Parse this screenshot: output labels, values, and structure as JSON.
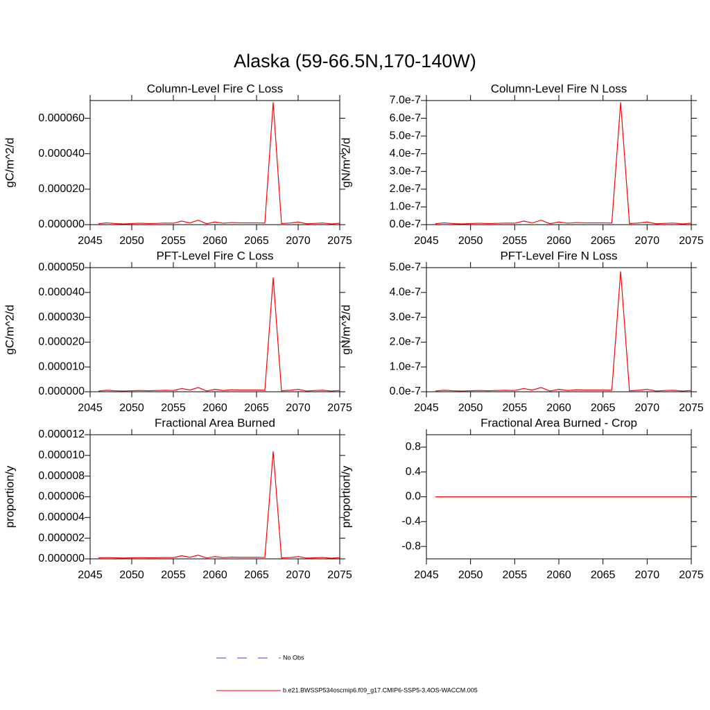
{
  "title": "Alaska (59-66.5N,170-140W)",
  "legend": [
    {
      "label": "No Obs",
      "color": "#3b3bd0",
      "dash": true
    },
    {
      "label": "b.e21.BWSSP534oscmip6.f09_g17.CMIP6-SSP5-3.4OS-WACCM.005",
      "color": "#ff0000",
      "dash": false
    }
  ],
  "chart_data": [
    {
      "type": "line",
      "title": "Column-Level Fire C Loss",
      "ylabel": "gC/m^2/d",
      "color": "#ff0000",
      "x": [
        2046,
        2047,
        2048,
        2049,
        2050,
        2051,
        2052,
        2053,
        2054,
        2055,
        2056,
        2057,
        2058,
        2059,
        2060,
        2061,
        2062,
        2063,
        2064,
        2065,
        2066,
        2067,
        2068,
        2069,
        2070,
        2071,
        2072,
        2073,
        2074,
        2075
      ],
      "values": [
        5e-07,
        1e-06,
        6e-07,
        4e-07,
        6e-07,
        8e-07,
        6e-07,
        7e-07,
        9e-07,
        8e-07,
        2e-06,
        1e-06,
        2.5e-06,
        5e-07,
        1.5e-06,
        8e-07,
        1.2e-06,
        1e-06,
        1e-06,
        1e-06,
        9e-07,
        6.9e-05,
        6e-07,
        9e-07,
        1.5e-06,
        5e-07,
        7e-07,
        9e-07,
        4e-07,
        8e-07
      ],
      "xlim": [
        2045,
        2075
      ],
      "xticks": [
        2045,
        2050,
        2055,
        2060,
        2065,
        2070,
        2075
      ],
      "ylim": [
        0,
        7e-05
      ],
      "yticks": [
        {
          "value": 0,
          "label": "0.000000"
        },
        {
          "value": 2e-05,
          "label": "0.000020"
        },
        {
          "value": 4e-05,
          "label": "0.000040"
        },
        {
          "value": 6e-05,
          "label": "0.000060"
        }
      ]
    },
    {
      "type": "line",
      "title": "Column-Level Fire N Loss",
      "ylabel": "gN/m^2/d",
      "color": "#ff0000",
      "x": [
        2046,
        2047,
        2048,
        2049,
        2050,
        2051,
        2052,
        2053,
        2054,
        2055,
        2056,
        2057,
        2058,
        2059,
        2060,
        2061,
        2062,
        2063,
        2064,
        2065,
        2066,
        2067,
        2068,
        2069,
        2070,
        2071,
        2072,
        2073,
        2074,
        2075
      ],
      "values": [
        5e-09,
        1e-08,
        6e-09,
        4e-09,
        6e-09,
        8e-09,
        6e-09,
        7e-09,
        9e-09,
        8e-09,
        2e-08,
        1e-08,
        2.5e-08,
        5e-09,
        1.5e-08,
        8e-09,
        1.2e-08,
        1e-08,
        1e-08,
        1e-08,
        9e-09,
        6.9e-07,
        6e-09,
        9e-09,
        1.5e-08,
        5e-09,
        7e-09,
        9e-09,
        4e-09,
        8e-09
      ],
      "xlim": [
        2045,
        2075
      ],
      "xticks": [
        2045,
        2050,
        2055,
        2060,
        2065,
        2070,
        2075
      ],
      "ylim": [
        0,
        7e-07
      ],
      "yticks": [
        {
          "value": 0,
          "label": "0.0e-7"
        },
        {
          "value": 1e-07,
          "label": "1.0e-7"
        },
        {
          "value": 2e-07,
          "label": "2.0e-7"
        },
        {
          "value": 3e-07,
          "label": "3.0e-7"
        },
        {
          "value": 4e-07,
          "label": "4.0e-7"
        },
        {
          "value": 5e-07,
          "label": "5.0e-7"
        },
        {
          "value": 6e-07,
          "label": "6.0e-7"
        },
        {
          "value": 7e-07,
          "label": "7.0e-7"
        }
      ]
    },
    {
      "type": "line",
      "title": "PFT-Level Fire C Loss",
      "ylabel": "gC/m^2/d",
      "color": "#ff0000",
      "x": [
        2046,
        2047,
        2048,
        2049,
        2050,
        2051,
        2052,
        2053,
        2054,
        2055,
        2056,
        2057,
        2058,
        2059,
        2060,
        2061,
        2062,
        2063,
        2064,
        2065,
        2066,
        2067,
        2068,
        2069,
        2070,
        2071,
        2072,
        2073,
        2074,
        2075
      ],
      "values": [
        3e-07,
        6e-07,
        4e-07,
        3e-07,
        4e-07,
        5e-07,
        4e-07,
        5e-07,
        6e-07,
        5e-07,
        1.3e-06,
        7e-07,
        1.7e-06,
        3e-07,
        1e-06,
        5e-07,
        8e-07,
        7e-07,
        7e-07,
        7e-07,
        6e-07,
        4.6e-05,
        4e-07,
        6e-07,
        1e-06,
        3e-07,
        5e-07,
        6e-07,
        3e-07,
        5e-07
      ],
      "xlim": [
        2045,
        2075
      ],
      "xticks": [
        2045,
        2050,
        2055,
        2060,
        2065,
        2070,
        2075
      ],
      "ylim": [
        0,
        5e-05
      ],
      "yticks": [
        {
          "value": 0,
          "label": "0.000000"
        },
        {
          "value": 1e-05,
          "label": "0.000010"
        },
        {
          "value": 2e-05,
          "label": "0.000020"
        },
        {
          "value": 3e-05,
          "label": "0.000030"
        },
        {
          "value": 4e-05,
          "label": "0.000040"
        },
        {
          "value": 5e-05,
          "label": "0.000050"
        }
      ]
    },
    {
      "type": "line",
      "title": "PFT-Level Fire N Loss",
      "ylabel": "gN/m^2/d",
      "color": "#ff0000",
      "x": [
        2046,
        2047,
        2048,
        2049,
        2050,
        2051,
        2052,
        2053,
        2054,
        2055,
        2056,
        2057,
        2058,
        2059,
        2060,
        2061,
        2062,
        2063,
        2064,
        2065,
        2066,
        2067,
        2068,
        2069,
        2070,
        2071,
        2072,
        2073,
        2074,
        2075
      ],
      "values": [
        3e-09,
        6e-09,
        4e-09,
        3e-09,
        4e-09,
        5e-09,
        4e-09,
        5e-09,
        6e-09,
        5e-09,
        1.3e-08,
        7e-09,
        1.7e-08,
        3e-09,
        1e-08,
        5e-09,
        8e-09,
        7e-09,
        7e-09,
        7e-09,
        6e-09,
        4.85e-07,
        4e-09,
        6e-09,
        1e-08,
        3e-09,
        5e-09,
        6e-09,
        3e-09,
        5e-09
      ],
      "xlim": [
        2045,
        2075
      ],
      "xticks": [
        2045,
        2050,
        2055,
        2060,
        2065,
        2070,
        2075
      ],
      "ylim": [
        0,
        5e-07
      ],
      "yticks": [
        {
          "value": 0,
          "label": "0.0e-7"
        },
        {
          "value": 1e-07,
          "label": "1.0e-7"
        },
        {
          "value": 2e-07,
          "label": "2.0e-7"
        },
        {
          "value": 3e-07,
          "label": "3.0e-7"
        },
        {
          "value": 4e-07,
          "label": "4.0e-7"
        },
        {
          "value": 5e-07,
          "label": "5.0e-7"
        }
      ]
    },
    {
      "type": "line",
      "title": "Fractional Area Burned",
      "ylabel": "proportion/y",
      "color": "#ff0000",
      "x": [
        2046,
        2047,
        2048,
        2049,
        2050,
        2051,
        2052,
        2053,
        2054,
        2055,
        2056,
        2057,
        2058,
        2059,
        2060,
        2061,
        2062,
        2063,
        2064,
        2065,
        2066,
        2067,
        2068,
        2069,
        2070,
        2071,
        2072,
        2073,
        2074,
        2075
      ],
      "values": [
        1e-07,
        1.2e-07,
        1e-07,
        8e-08,
        1e-07,
        1.2e-07,
        1e-07,
        1.1e-07,
        1.3e-07,
        1.2e-07,
        3e-07,
        1.5e-07,
        3.5e-07,
        8e-08,
        2.2e-07,
        1.2e-07,
        1.7e-07,
        1.5e-07,
        1.5e-07,
        1.5e-07,
        1.3e-07,
        1.04e-05,
        9e-08,
        1.3e-07,
        2.2e-07,
        8e-08,
        1e-07,
        1.3e-07,
        6e-08,
        1.2e-07
      ],
      "xlim": [
        2045,
        2075
      ],
      "xticks": [
        2045,
        2050,
        2055,
        2060,
        2065,
        2070,
        2075
      ],
      "ylim": [
        0,
        1.2e-05
      ],
      "yticks": [
        {
          "value": 0,
          "label": "0.000000"
        },
        {
          "value": 2e-06,
          "label": "0.000002"
        },
        {
          "value": 4e-06,
          "label": "0.000004"
        },
        {
          "value": 6e-06,
          "label": "0.000006"
        },
        {
          "value": 8e-06,
          "label": "0.000008"
        },
        {
          "value": 1e-05,
          "label": "0.000010"
        },
        {
          "value": 1.2e-05,
          "label": "0.000012"
        }
      ]
    },
    {
      "type": "line",
      "title": "Fractional Area Burned - Crop",
      "ylabel": "proportion/y",
      "color": "#ff0000",
      "x": [
        2046,
        2047,
        2048,
        2049,
        2050,
        2051,
        2052,
        2053,
        2054,
        2055,
        2056,
        2057,
        2058,
        2059,
        2060,
        2061,
        2062,
        2063,
        2064,
        2065,
        2066,
        2067,
        2068,
        2069,
        2070,
        2071,
        2072,
        2073,
        2074,
        2075
      ],
      "values": [
        0,
        0,
        0,
        0,
        0,
        0,
        0,
        0,
        0,
        0,
        0,
        0,
        0,
        0,
        0,
        0,
        0,
        0,
        0,
        0,
        0,
        0,
        0,
        0,
        0,
        0,
        0,
        0,
        0,
        0
      ],
      "xlim": [
        2045,
        2075
      ],
      "xticks": [
        2045,
        2050,
        2055,
        2060,
        2065,
        2070,
        2075
      ],
      "ylim": [
        -1,
        1
      ],
      "yticks": [
        -0.8,
        -0.4,
        {
          "value": 0,
          "label": "0.0"
        },
        0.4,
        0.8
      ]
    }
  ]
}
